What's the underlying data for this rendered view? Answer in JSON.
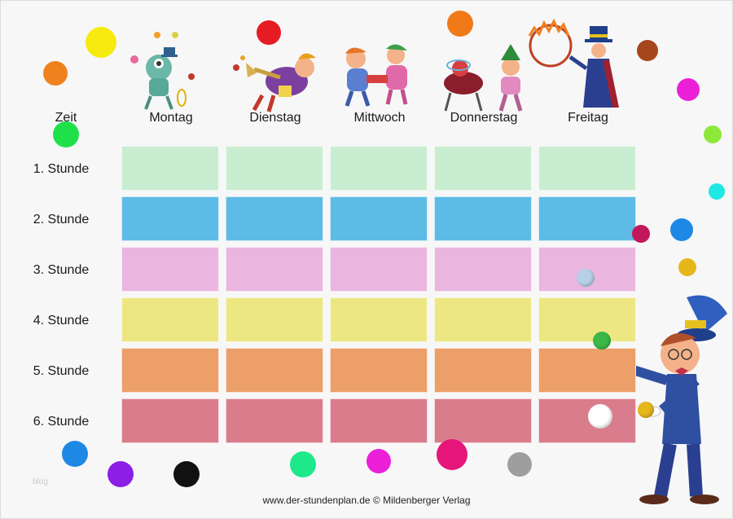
{
  "header": {
    "time": "Zeit",
    "days": [
      "Montag",
      "Dienstag",
      "Mittwoch",
      "Donnerstag",
      "Freitag"
    ]
  },
  "rows": [
    {
      "label": "1. Stunde",
      "color": "#c9edd1"
    },
    {
      "label": "2. Stunde",
      "color": "#5ebbe6"
    },
    {
      "label": "3. Stunde",
      "color": "#eab6df"
    },
    {
      "label": "4. Stunde",
      "color": "#ece783"
    },
    {
      "label": "5. Stunde",
      "color": "#ec9f68"
    },
    {
      "label": "6. Stunde",
      "color": "#d97c8c"
    }
  ],
  "dot_colors": [
    "#f7ea0f",
    "#f0821e",
    "#e51c23",
    "#20e04a",
    "#f07a18",
    "#a6461c",
    "#ec1fd9",
    "#8ee83a",
    "#1fe7e3",
    "#1e88e5",
    "#e6b71a",
    "#c2185b",
    "#1e88e5",
    "#8b1fe5",
    "#111111",
    "#1de98b",
    "#ec1fd9",
    "#e6157a",
    "#9e9e9e"
  ],
  "watermark": "blog",
  "footer": "www.der-stundenplan.de © Mildenberger Verlag"
}
